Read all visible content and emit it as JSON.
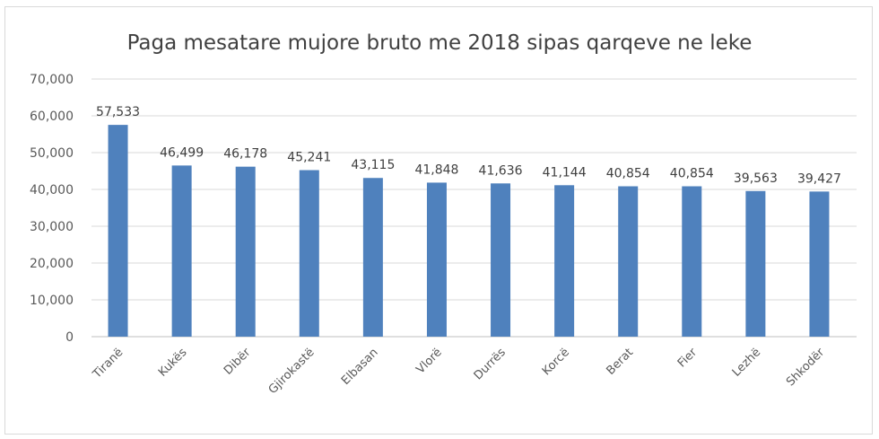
{
  "chart_data": {
    "type": "bar",
    "title": "Paga mesatare mujore bruto me 2018 sipas qarqeve ne leke",
    "categories": [
      "Tiranë",
      "Kukës",
      "Dibër",
      "Gjirokastë",
      "Elbasan",
      "Vlorë",
      "Durrës",
      "Korcë",
      "Berat",
      "Fier",
      "Lezhë",
      "Shkodër"
    ],
    "values": [
      57533,
      46499,
      46178,
      45241,
      43115,
      41848,
      41636,
      41144,
      40854,
      40854,
      39563,
      39427
    ],
    "data_labels": [
      "57,533",
      "46,499",
      "46,178",
      "45,241",
      "43,115",
      "41,848",
      "41,636",
      "41,144",
      "40,854",
      "40,854",
      "39,563",
      "39,427"
    ],
    "yticks": [
      "0",
      "10,000",
      "20,000",
      "30,000",
      "40,000",
      "50,000",
      "60,000",
      "70,000"
    ],
    "ylim": [
      0,
      70000
    ],
    "grid": true,
    "xlabel": "",
    "ylabel": "",
    "bar_color": "#4f81bd"
  }
}
